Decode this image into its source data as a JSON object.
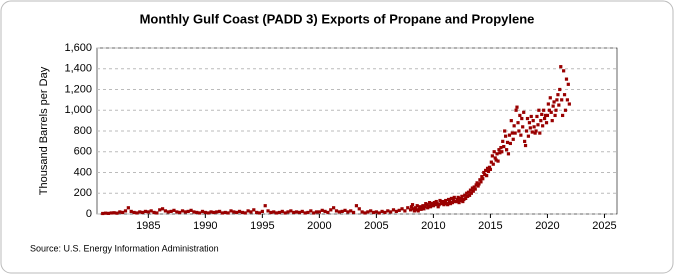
{
  "chart_data": {
    "type": "scatter",
    "title": "Monthly Gulf Coast (PADD 3) Exports of Propane and Propylene",
    "y_label": "Thousand Barrels per Day",
    "source": "Source: U.S. Energy Information Administration",
    "color": "#990000",
    "grid": true,
    "xlim": [
      1980.5,
      2026.1
    ],
    "ylim": [
      0,
      1600
    ],
    "xticks": [
      1985,
      1990,
      1995,
      2000,
      2005,
      2010,
      2015,
      2020,
      2025
    ],
    "yticks": [
      0,
      200,
      400,
      600,
      800,
      {
        "value": 1000,
        "label": "1,000"
      },
      {
        "value": 1200,
        "label": "1,200"
      },
      {
        "value": 1400,
        "label": "1,400"
      },
      {
        "value": 1600,
        "label": "1,600"
      }
    ],
    "x": [
      1981,
      1981.25,
      1981.5,
      1981.75,
      1982,
      1982.25,
      1982.5,
      1982.75,
      1983,
      1983.25,
      1983.5,
      1983.75,
      1984,
      1984.25,
      1984.5,
      1984.75,
      1985,
      1985.25,
      1985.5,
      1985.75,
      1986,
      1986.25,
      1986.5,
      1986.75,
      1987,
      1987.25,
      1987.5,
      1987.75,
      1988,
      1988.25,
      1988.5,
      1988.75,
      1989,
      1989.25,
      1989.5,
      1989.75,
      1990,
      1990.25,
      1990.5,
      1990.75,
      1991,
      1991.25,
      1991.5,
      1991.75,
      1992,
      1992.25,
      1992.5,
      1992.75,
      1993,
      1993.25,
      1993.5,
      1993.75,
      1994,
      1994.25,
      1994.5,
      1994.75,
      1995,
      1995.25,
      1995.5,
      1995.75,
      1996,
      1996.25,
      1996.5,
      1996.75,
      1997,
      1997.25,
      1997.5,
      1997.75,
      1998,
      1998.25,
      1998.5,
      1998.75,
      1999,
      1999.25,
      1999.5,
      1999.75,
      2000,
      2000.25,
      2000.5,
      2000.75,
      2001,
      2001.25,
      2001.5,
      2001.75,
      2002,
      2002.25,
      2002.5,
      2002.75,
      2003,
      2003.25,
      2003.5,
      2003.75,
      2004,
      2004.25,
      2004.5,
      2004.75,
      2005,
      2005.25,
      2005.5,
      2005.75,
      2006,
      2006.25,
      2006.5,
      2006.75,
      2007,
      2007.25,
      2007.5,
      2007.75,
      2008,
      2008.08,
      2008.17,
      2008.25,
      2008.33,
      2008.42,
      2008.5,
      2008.58,
      2008.67,
      2008.75,
      2008.83,
      2008.92,
      2009,
      2009.08,
      2009.17,
      2009.25,
      2009.33,
      2009.42,
      2009.5,
      2009.58,
      2009.67,
      2009.75,
      2009.83,
      2009.92,
      2010,
      2010.08,
      2010.17,
      2010.25,
      2010.33,
      2010.42,
      2010.5,
      2010.58,
      2010.67,
      2010.75,
      2010.83,
      2010.92,
      2011,
      2011.08,
      2011.17,
      2011.25,
      2011.33,
      2011.42,
      2011.5,
      2011.58,
      2011.67,
      2011.75,
      2011.83,
      2011.92,
      2012,
      2012.08,
      2012.17,
      2012.25,
      2012.33,
      2012.42,
      2012.5,
      2012.58,
      2012.67,
      2012.75,
      2012.83,
      2012.92,
      2013,
      2013.08,
      2013.17,
      2013.25,
      2013.33,
      2013.42,
      2013.5,
      2013.58,
      2013.67,
      2013.75,
      2013.83,
      2013.92,
      2014,
      2014.08,
      2014.17,
      2014.25,
      2014.33,
      2014.42,
      2014.5,
      2014.58,
      2014.67,
      2014.75,
      2014.83,
      2014.92,
      2015,
      2015.08,
      2015.17,
      2015.25,
      2015.33,
      2015.42,
      2015.5,
      2015.58,
      2015.67,
      2015.75,
      2015.83,
      2015.92,
      2016,
      2016.08,
      2016.17,
      2016.25,
      2016.33,
      2016.42,
      2016.5,
      2016.58,
      2016.67,
      2016.75,
      2016.83,
      2016.92,
      2017,
      2017.08,
      2017.17,
      2017.25,
      2017.33,
      2017.42,
      2017.5,
      2017.58,
      2017.67,
      2017.75,
      2017.83,
      2017.92,
      2018,
      2018.08,
      2018.17,
      2018.25,
      2018.33,
      2018.42,
      2018.5,
      2018.58,
      2018.67,
      2018.75,
      2018.83,
      2018.92,
      2019,
      2019.08,
      2019.17,
      2019.25,
      2019.33,
      2019.42,
      2019.5,
      2019.58,
      2019.67,
      2019.75,
      2019.83,
      2019.92,
      2020,
      2020.08,
      2020.17,
      2020.25,
      2020.33,
      2020.42,
      2020.5,
      2020.58,
      2020.67,
      2020.75,
      2020.83,
      2020.92,
      2021,
      2021.08,
      2021.17,
      2021.25,
      2021.33,
      2021.42,
      2021.5,
      2021.58,
      2021.67,
      2021.75,
      2021.83,
      2021.92
    ],
    "values": [
      5,
      8,
      6,
      10,
      12,
      8,
      20,
      15,
      30,
      60,
      25,
      15,
      10,
      20,
      15,
      25,
      20,
      30,
      15,
      10,
      40,
      50,
      30,
      20,
      25,
      35,
      20,
      15,
      30,
      20,
      25,
      35,
      20,
      15,
      10,
      25,
      15,
      10,
      20,
      15,
      20,
      25,
      10,
      15,
      10,
      30,
      20,
      15,
      25,
      15,
      10,
      30,
      20,
      40,
      15,
      10,
      25,
      80,
      30,
      15,
      20,
      10,
      15,
      25,
      10,
      20,
      30,
      15,
      20,
      15,
      25,
      10,
      15,
      30,
      10,
      20,
      20,
      35,
      25,
      15,
      40,
      60,
      30,
      20,
      25,
      35,
      20,
      30,
      15,
      80,
      50,
      20,
      10,
      20,
      30,
      15,
      20,
      10,
      25,
      15,
      30,
      20,
      40,
      25,
      35,
      50,
      30,
      60,
      40,
      70,
      90,
      50,
      30,
      60,
      40,
      80,
      30,
      50,
      70,
      45,
      60,
      80,
      50,
      70,
      100,
      90,
      60,
      80,
      110,
      70,
      90,
      100,
      80,
      110,
      90,
      120,
      100,
      70,
      90,
      130,
      110,
      100,
      120,
      90,
      110,
      130,
      100,
      90,
      140,
      120,
      100,
      150,
      110,
      130,
      160,
      120,
      120,
      140,
      160,
      110,
      130,
      150,
      170,
      120,
      140,
      180,
      150,
      200,
      170,
      210,
      180,
      230,
      200,
      250,
      220,
      260,
      240,
      280,
      300,
      270,
      290,
      330,
      310,
      360,
      340,
      400,
      380,
      420,
      370,
      440,
      410,
      450,
      430,
      500,
      560,
      480,
      600,
      540,
      520,
      580,
      510,
      620,
      590,
      640,
      600,
      700,
      650,
      800,
      750,
      620,
      690,
      580,
      760,
      680,
      900,
      780,
      720,
      850,
      780,
      1000,
      1030,
      880,
      800,
      950,
      760,
      920,
      840,
      980,
      700,
      660,
      800,
      920,
      750,
      880,
      830,
      940,
      790,
      900,
      840,
      780,
      800,
      940,
      860,
      1000,
      780,
      900,
      960,
      850,
      1000,
      920,
      950,
      880,
      950,
      1060,
      1000,
      1120,
      980,
      900,
      1040,
      1080,
      950,
      1000,
      1100,
      1150,
      1050,
      1200,
      1420,
      1100,
      950,
      1380,
      1150,
      1000,
      1300,
      1100,
      1250,
      1060
    ]
  }
}
